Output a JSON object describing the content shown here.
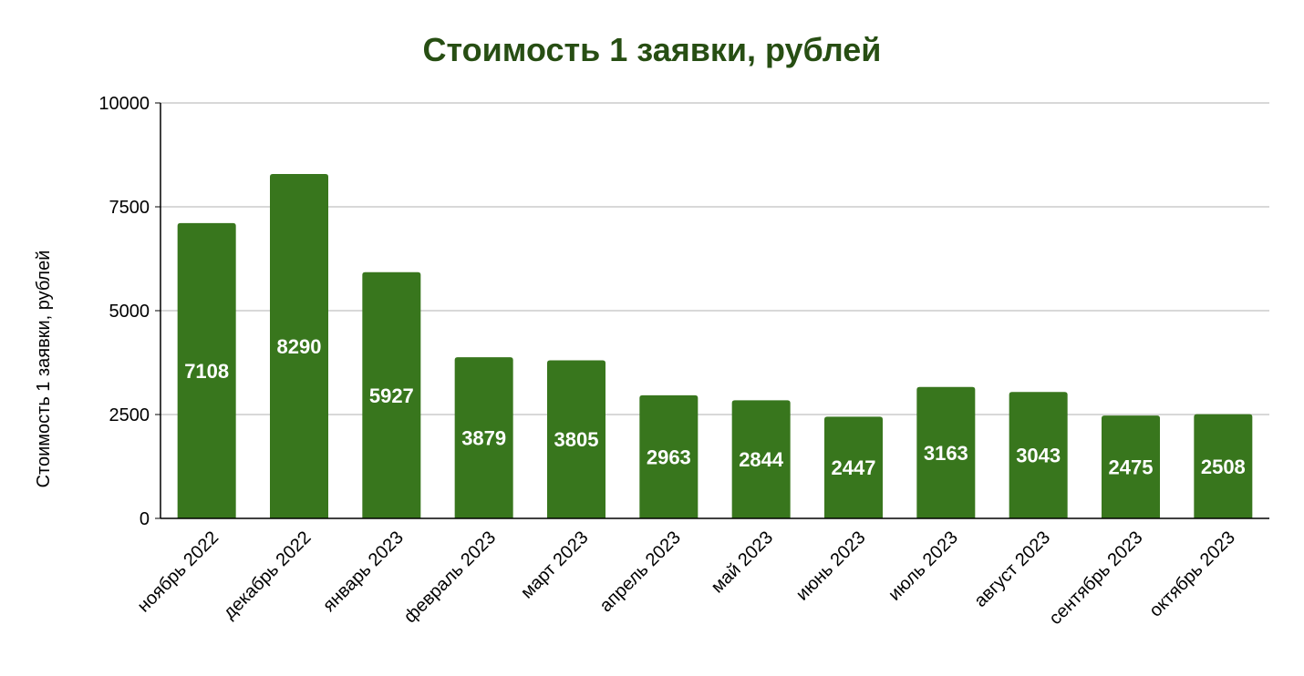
{
  "chart_data": {
    "type": "bar",
    "title": "Стоимость 1 заявки, рублей",
    "xlabel": "",
    "ylabel": "Стоимость 1 заявки, рублей",
    "categories": [
      "ноябрь 2022",
      "декабрь 2022",
      "январь 2023",
      "февраль 2023",
      "март 2023",
      "апрель 2023",
      "май 2023",
      "июнь 2023",
      "июль 2023",
      "август 2023",
      "сентябрь 2023",
      "октябрь 2023"
    ],
    "values": [
      7108,
      8290,
      5927,
      3879,
      3805,
      2963,
      2844,
      2447,
      3163,
      3043,
      2475,
      2508
    ],
    "data_labels": [
      "7108",
      "8290",
      "5927",
      "3879",
      "3805",
      "2963",
      "2844",
      "2447",
      "3163",
      "3043",
      "2475",
      "2508"
    ],
    "yticks": [
      0,
      2500,
      5000,
      7500,
      10000
    ],
    "ytick_labels": [
      "0",
      "2500",
      "5000",
      "7500",
      "10000"
    ],
    "ylim": [
      0,
      10000
    ],
    "grid": true,
    "legend": "none",
    "colors": {
      "bar": "#38761d",
      "title": "#274e13",
      "grid": "#cccccc",
      "axis": "#000000",
      "label": "#ffffff"
    }
  }
}
